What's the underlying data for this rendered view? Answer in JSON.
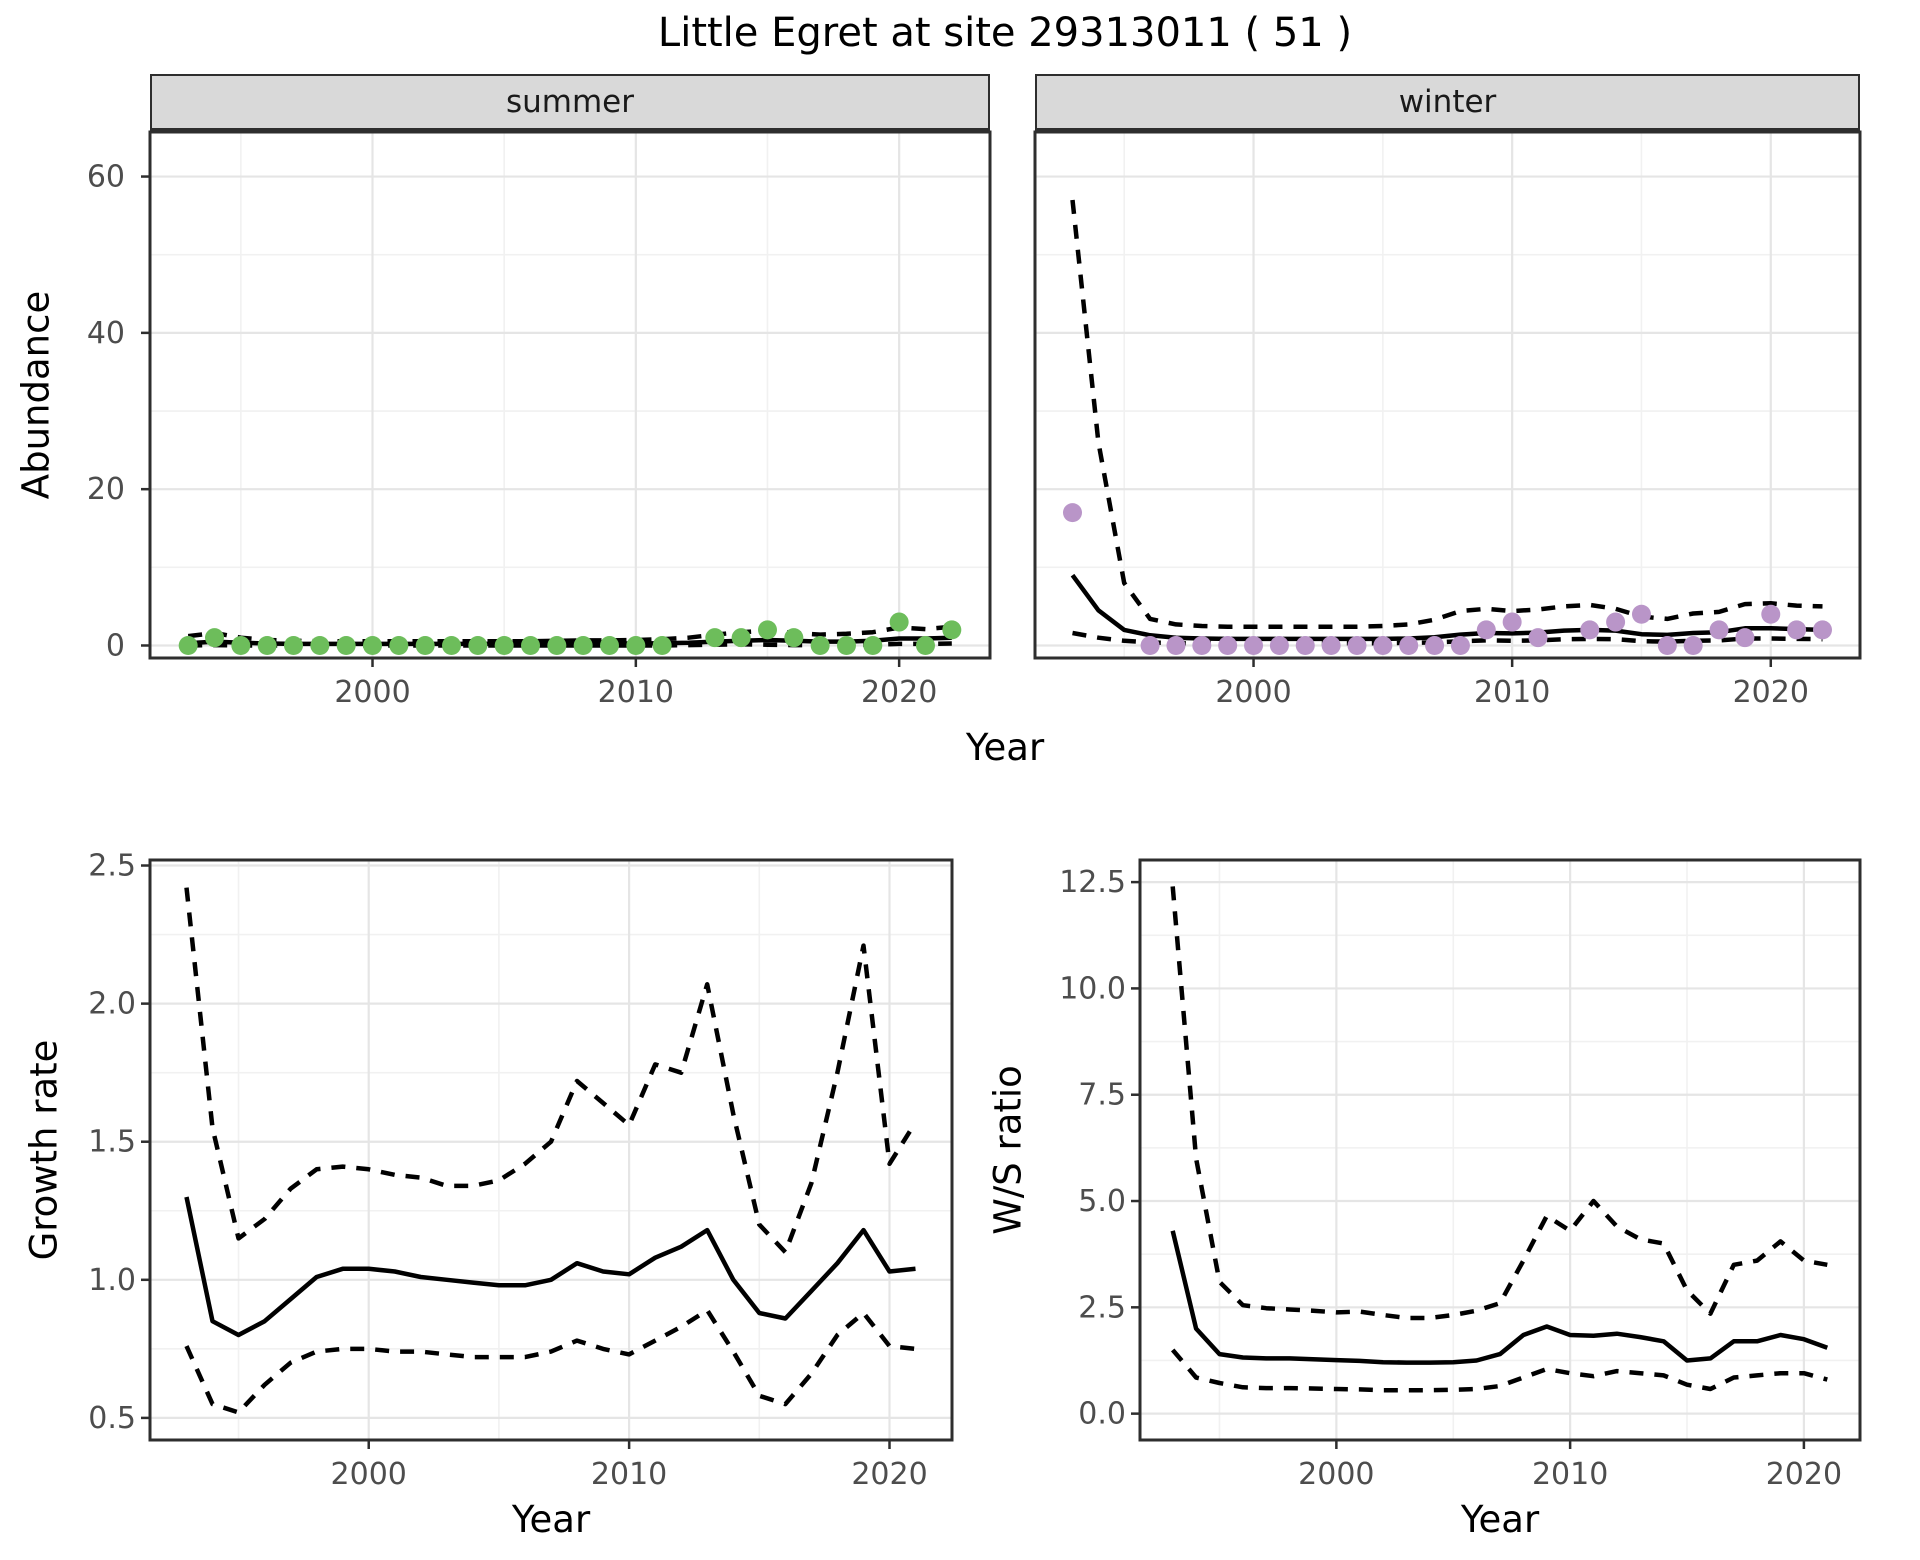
{
  "title": "Little Egret at site 29313011 ( 51 )",
  "facets": {
    "summer": "summer",
    "winter": "winter"
  },
  "axis_titles": {
    "abundance": "Abundance",
    "top_year": "Year",
    "growth": "Growth rate",
    "growth_year": "Year",
    "ws": "W/S ratio",
    "ws_year": "Year"
  },
  "colors": {
    "summer_point": "#6dbd5b",
    "winter_point": "#b995c8",
    "line": "#000000",
    "panel_border": "#2e2e2e",
    "grid_major": "#e5e5e5",
    "grid_minor": "#f1f1f1",
    "tick_text": "#4d4d4d",
    "strip_bg": "#d9d9d9"
  },
  "chart_data": [
    {
      "id": "abundance_summer",
      "type": "line+scatter",
      "facet_label": "summer",
      "ylabel": "Abundance",
      "xlabel": "Year",
      "point_color": "#6dbd5b",
      "xlim": [
        1991.55,
        2023.45
      ],
      "ylim": [
        -1.6,
        65.7
      ],
      "xticks": {
        "values": [
          2000,
          2010,
          2020
        ],
        "labels": [
          "2000",
          "2010",
          "2020"
        ]
      },
      "yticks": {
        "values": [
          0,
          20,
          40,
          60
        ],
        "labels": [
          "0",
          "20",
          "40",
          "60"
        ]
      },
      "y_labels_shown": true,
      "points": {
        "x": [
          1993,
          1994,
          1995,
          1996,
          1997,
          1998,
          1999,
          2000,
          2001,
          2002,
          2003,
          2004,
          2005,
          2006,
          2007,
          2008,
          2009,
          2010,
          2011,
          2013,
          2014,
          2015,
          2016,
          2017,
          2018,
          2019,
          2020,
          2021,
          2022
        ],
        "y": [
          0,
          1,
          0,
          0,
          0,
          0,
          0,
          0,
          0,
          0,
          0,
          0,
          0,
          0,
          0,
          0,
          0,
          0,
          0,
          1,
          1,
          2,
          1,
          0,
          0,
          0,
          3,
          0,
          2
        ]
      },
      "fit": {
        "x": [
          1993,
          1994,
          1995,
          1996,
          1997,
          1998,
          1999,
          2000,
          2001,
          2002,
          2003,
          2004,
          2005,
          2006,
          2007,
          2008,
          2009,
          2010,
          2011,
          2012,
          2013,
          2014,
          2015,
          2016,
          2017,
          2018,
          2019,
          2020,
          2021,
          2022
        ],
        "y": [
          0.3,
          0.5,
          0.35,
          0.25,
          0.2,
          0.2,
          0.2,
          0.2,
          0.2,
          0.2,
          0.2,
          0.2,
          0.2,
          0.2,
          0.2,
          0.25,
          0.25,
          0.25,
          0.3,
          0.35,
          0.5,
          0.6,
          0.7,
          0.6,
          0.5,
          0.5,
          0.6,
          0.9,
          0.9,
          1.0
        ]
      },
      "upper": {
        "x": [
          1993,
          1994,
          1995,
          1996,
          1997,
          1998,
          1999,
          2000,
          2001,
          2002,
          2003,
          2004,
          2005,
          2006,
          2007,
          2008,
          2009,
          2010,
          2011,
          2012,
          2013,
          2014,
          2015,
          2016,
          2017,
          2018,
          2019,
          2020,
          2021,
          2022
        ],
        "y": [
          1.2,
          1.6,
          1.0,
          0.7,
          0.6,
          0.55,
          0.55,
          0.55,
          0.55,
          0.55,
          0.55,
          0.55,
          0.55,
          0.55,
          0.6,
          0.65,
          0.65,
          0.7,
          0.8,
          1.0,
          1.4,
          1.7,
          1.9,
          1.6,
          1.4,
          1.5,
          1.7,
          2.3,
          2.1,
          2.4
        ]
      },
      "lower": {
        "x": [
          1993,
          1994,
          1995,
          1996,
          1997,
          1998,
          1999,
          2000,
          2001,
          2002,
          2003,
          2004,
          2005,
          2006,
          2007,
          2008,
          2009,
          2010,
          2011,
          2012,
          2013,
          2014,
          2015,
          2016,
          2017,
          2018,
          2019,
          2020,
          2021,
          2022
        ],
        "y": [
          0,
          0.05,
          0,
          0,
          0,
          0,
          0,
          0,
          0,
          0,
          0,
          0,
          0,
          0,
          0,
          0,
          0,
          0,
          0,
          0.05,
          0.1,
          0.15,
          0.1,
          0.05,
          0.05,
          0.05,
          0.1,
          0.2,
          0.2,
          0.25
        ]
      }
    },
    {
      "id": "abundance_winter",
      "type": "line+scatter",
      "facet_label": "winter",
      "ylabel": "Abundance",
      "xlabel": "Year",
      "point_color": "#b995c8",
      "xlim": [
        1991.55,
        2023.45
      ],
      "ylim": [
        -1.6,
        65.7
      ],
      "xticks": {
        "values": [
          2000,
          2010,
          2020
        ],
        "labels": [
          "2000",
          "2010",
          "2020"
        ]
      },
      "yticks": {
        "values": [
          0,
          20,
          40,
          60
        ],
        "labels": [
          "0",
          "20",
          "40",
          "60"
        ]
      },
      "y_labels_shown": false,
      "points": {
        "x": [
          1993,
          1996,
          1997,
          1998,
          1999,
          2000,
          2001,
          2002,
          2003,
          2004,
          2005,
          2006,
          2007,
          2008,
          2009,
          2010,
          2011,
          2013,
          2014,
          2015,
          2016,
          2017,
          2018,
          2019,
          2020,
          2021,
          2022
        ],
        "y": [
          17,
          0,
          0,
          0,
          0,
          0,
          0,
          0,
          0,
          0,
          0,
          0,
          0,
          0,
          2,
          3,
          1,
          2,
          3,
          4,
          0,
          0,
          2,
          1,
          4,
          2,
          2
        ]
      },
      "fit": {
        "x": [
          1993,
          1994,
          1995,
          1996,
          1997,
          1998,
          1999,
          2000,
          2001,
          2002,
          2003,
          2004,
          2005,
          2006,
          2007,
          2008,
          2009,
          2010,
          2011,
          2012,
          2013,
          2014,
          2015,
          2016,
          2017,
          2018,
          2019,
          2020,
          2021,
          2022
        ],
        "y": [
          9.0,
          4.5,
          2.0,
          1.3,
          1.0,
          0.9,
          0.85,
          0.85,
          0.85,
          0.85,
          0.85,
          0.85,
          0.85,
          0.9,
          1.05,
          1.4,
          1.6,
          1.55,
          1.65,
          1.9,
          2.0,
          1.9,
          1.45,
          1.35,
          1.6,
          1.7,
          2.2,
          2.2,
          2.1,
          2.0
        ]
      },
      "upper": {
        "x": [
          1993,
          1994,
          1995,
          1996,
          1997,
          1998,
          1999,
          2000,
          2001,
          2002,
          2003,
          2004,
          2005,
          2006,
          2007,
          2008,
          2009,
          2010,
          2011,
          2012,
          2013,
          2014,
          2015,
          2016,
          2017,
          2018,
          2019,
          2020,
          2021,
          2022
        ],
        "y": [
          57,
          26,
          8.0,
          3.4,
          2.7,
          2.5,
          2.4,
          2.4,
          2.4,
          2.4,
          2.4,
          2.4,
          2.5,
          2.7,
          3.3,
          4.4,
          4.7,
          4.4,
          4.6,
          5.0,
          5.2,
          4.7,
          3.7,
          3.4,
          4.1,
          4.3,
          5.3,
          5.4,
          5.1,
          5.0
        ]
      },
      "lower": {
        "x": [
          1993,
          1994,
          1995,
          1996,
          1997,
          1998,
          1999,
          2000,
          2001,
          2002,
          2003,
          2004,
          2005,
          2006,
          2007,
          2008,
          2009,
          2010,
          2011,
          2012,
          2013,
          2014,
          2015,
          2016,
          2017,
          2018,
          2019,
          2020,
          2021,
          2022
        ],
        "y": [
          1.6,
          1.0,
          0.6,
          0.4,
          0.3,
          0.3,
          0.3,
          0.3,
          0.3,
          0.3,
          0.3,
          0.3,
          0.3,
          0.35,
          0.4,
          0.55,
          0.65,
          0.6,
          0.65,
          0.8,
          0.85,
          0.8,
          0.55,
          0.5,
          0.6,
          0.65,
          0.9,
          0.9,
          0.85,
          0.8
        ]
      }
    },
    {
      "id": "growth_rate",
      "type": "line",
      "ylabel": "Growth rate",
      "xlabel": "Year",
      "xlim": [
        1991.6,
        2022.4
      ],
      "ylim": [
        0.42,
        2.52
      ],
      "xticks": {
        "values": [
          2000,
          2010,
          2020
        ],
        "labels": [
          "2000",
          "2010",
          "2020"
        ]
      },
      "yticks": {
        "values": [
          0.5,
          1.0,
          1.5,
          2.0,
          2.5
        ],
        "labels": [
          "0.5",
          "1.0",
          "1.5",
          "2.0",
          "2.5"
        ]
      },
      "y_labels_shown": true,
      "fit": {
        "x": [
          1993,
          1994,
          1995,
          1996,
          1997,
          1998,
          1999,
          2000,
          2001,
          2002,
          2003,
          2004,
          2005,
          2006,
          2007,
          2008,
          2009,
          2010,
          2011,
          2012,
          2013,
          2014,
          2015,
          2016,
          2017,
          2018,
          2019,
          2020,
          2021
        ],
        "y": [
          1.3,
          0.85,
          0.8,
          0.85,
          0.93,
          1.01,
          1.04,
          1.04,
          1.03,
          1.01,
          1.0,
          0.99,
          0.98,
          0.98,
          1.0,
          1.06,
          1.03,
          1.02,
          1.08,
          1.12,
          1.18,
          1.0,
          0.88,
          0.86,
          0.96,
          1.06,
          1.18,
          1.03,
          1.04
        ]
      },
      "upper": {
        "x": [
          1993,
          1994,
          1995,
          1996,
          1997,
          1998,
          1999,
          2000,
          2001,
          2002,
          2003,
          2004,
          2005,
          2006,
          2007,
          2008,
          2009,
          2010,
          2011,
          2012,
          2013,
          2014,
          2015,
          2016,
          2017,
          2018,
          2019,
          2020,
          2021
        ],
        "y": [
          2.42,
          1.55,
          1.15,
          1.22,
          1.33,
          1.4,
          1.41,
          1.4,
          1.38,
          1.37,
          1.34,
          1.34,
          1.36,
          1.42,
          1.5,
          1.72,
          1.64,
          1.56,
          1.78,
          1.75,
          2.07,
          1.6,
          1.2,
          1.1,
          1.35,
          1.75,
          2.21,
          1.42,
          1.57
        ]
      },
      "lower": {
        "x": [
          1993,
          1994,
          1995,
          1996,
          1997,
          1998,
          1999,
          2000,
          2001,
          2002,
          2003,
          2004,
          2005,
          2006,
          2007,
          2008,
          2009,
          2010,
          2011,
          2012,
          2013,
          2014,
          2015,
          2016,
          2017,
          2018,
          2019,
          2020,
          2021
        ],
        "y": [
          0.76,
          0.55,
          0.52,
          0.62,
          0.7,
          0.74,
          0.75,
          0.75,
          0.74,
          0.74,
          0.73,
          0.72,
          0.72,
          0.72,
          0.74,
          0.78,
          0.75,
          0.73,
          0.78,
          0.83,
          0.89,
          0.74,
          0.58,
          0.55,
          0.66,
          0.8,
          0.88,
          0.76,
          0.75
        ]
      }
    },
    {
      "id": "ws_ratio",
      "type": "line",
      "ylabel": "W/S ratio",
      "xlabel": "Year",
      "xlim": [
        1991.6,
        2022.4
      ],
      "ylim": [
        -0.62,
        13.02
      ],
      "xticks": {
        "values": [
          2000,
          2010,
          2020
        ],
        "labels": [
          "2000",
          "2010",
          "2020"
        ]
      },
      "yticks": {
        "values": [
          0.0,
          2.5,
          5.0,
          7.5,
          10.0,
          12.5
        ],
        "labels": [
          "0.0",
          "2.5",
          "5.0",
          "7.5",
          "10.0",
          "12.5"
        ]
      },
      "y_labels_shown": true,
      "fit": {
        "x": [
          1993,
          1994,
          1995,
          1996,
          1997,
          1998,
          1999,
          2000,
          2001,
          2002,
          2003,
          2004,
          2005,
          2006,
          2007,
          2008,
          2009,
          2010,
          2011,
          2012,
          2013,
          2014,
          2015,
          2016,
          2017,
          2018,
          2019,
          2020,
          2021
        ],
        "y": [
          4.3,
          2.0,
          1.4,
          1.32,
          1.3,
          1.3,
          1.28,
          1.26,
          1.24,
          1.21,
          1.2,
          1.2,
          1.21,
          1.25,
          1.4,
          1.85,
          2.05,
          1.85,
          1.83,
          1.88,
          1.8,
          1.7,
          1.25,
          1.3,
          1.7,
          1.7,
          1.85,
          1.75,
          1.55
        ]
      },
      "upper": {
        "x": [
          1993,
          1994,
          1995,
          1996,
          1997,
          1998,
          1999,
          2000,
          2001,
          2002,
          2003,
          2004,
          2005,
          2006,
          2007,
          2008,
          2009,
          2010,
          2011,
          2012,
          2013,
          2014,
          2015,
          2016,
          2017,
          2018,
          2019,
          2020,
          2021
        ],
        "y": [
          12.4,
          6.0,
          3.1,
          2.55,
          2.48,
          2.45,
          2.42,
          2.38,
          2.4,
          2.32,
          2.25,
          2.25,
          2.32,
          2.42,
          2.6,
          3.6,
          4.65,
          4.3,
          5.0,
          4.4,
          4.1,
          4.0,
          2.9,
          2.35,
          3.5,
          3.6,
          4.05,
          3.6,
          3.5
        ]
      },
      "lower": {
        "x": [
          1993,
          1994,
          1995,
          1996,
          1997,
          1998,
          1999,
          2000,
          2001,
          2002,
          2003,
          2004,
          2005,
          2006,
          2007,
          2008,
          2009,
          2010,
          2011,
          2012,
          2013,
          2014,
          2015,
          2016,
          2017,
          2018,
          2019,
          2020,
          2021
        ],
        "y": [
          1.5,
          0.85,
          0.72,
          0.62,
          0.6,
          0.6,
          0.59,
          0.58,
          0.57,
          0.55,
          0.55,
          0.55,
          0.56,
          0.58,
          0.65,
          0.85,
          1.05,
          0.95,
          0.88,
          1.0,
          0.95,
          0.9,
          0.68,
          0.58,
          0.85,
          0.9,
          0.95,
          0.95,
          0.8
        ]
      }
    }
  ]
}
